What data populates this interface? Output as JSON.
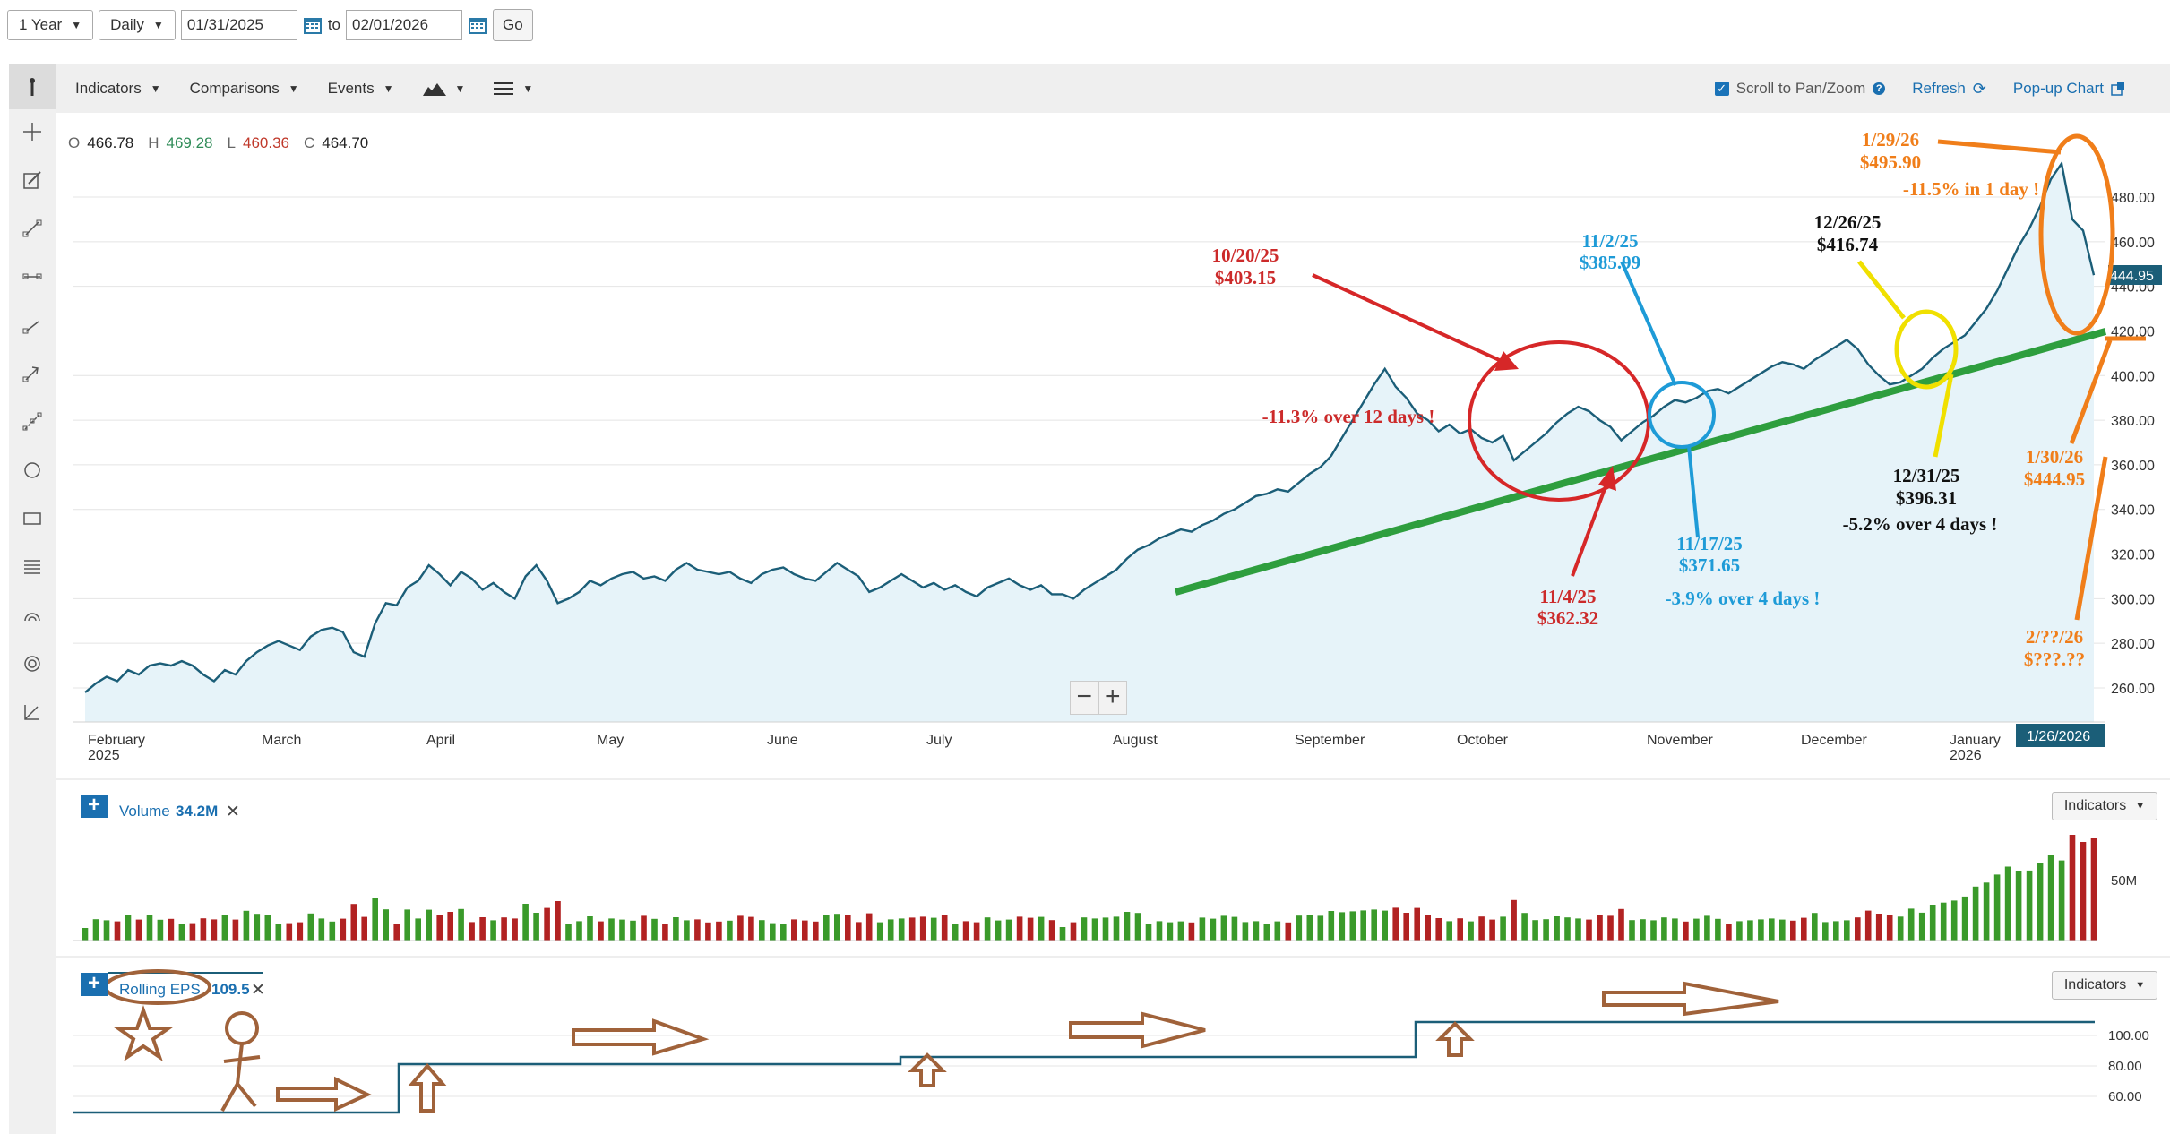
{
  "controls": {
    "range": "1 Year",
    "interval": "Daily",
    "start_date": "01/31/2025",
    "to_label": "to",
    "end_date": "02/01/2026",
    "go": "Go"
  },
  "toolbar": {
    "indicators": "Indicators",
    "comparisons": "Comparisons",
    "events": "Events",
    "scroll_label": "Scroll to Pan/Zoom",
    "refresh": "Refresh",
    "popup": "Pop-up Chart"
  },
  "ohlc": {
    "o_label": "O",
    "o": "466.78",
    "h_label": "H",
    "h": "469.28",
    "l_label": "L",
    "l": "460.36",
    "c_label": "C",
    "c": "464.70"
  },
  "price_axis": {
    "ticks": [
      "260.00",
      "280.00",
      "300.00",
      "320.00",
      "340.00",
      "360.00",
      "380.00",
      "400.00",
      "420.00",
      "440.00",
      "460.00",
      "480.00"
    ],
    "current": "444.95"
  },
  "time_axis": {
    "labels": [
      {
        "t": "February",
        "sub": "2025"
      },
      {
        "t": "March",
        "sub": ""
      },
      {
        "t": "April",
        "sub": ""
      },
      {
        "t": "May",
        "sub": ""
      },
      {
        "t": "June",
        "sub": ""
      },
      {
        "t": "July",
        "sub": ""
      },
      {
        "t": "August",
        "sub": ""
      },
      {
        "t": "September",
        "sub": ""
      },
      {
        "t": "October",
        "sub": ""
      },
      {
        "t": "November",
        "sub": ""
      },
      {
        "t": "December",
        "sub": ""
      },
      {
        "t": "January",
        "sub": "2026"
      }
    ],
    "cursor_date": "1/26/2026"
  },
  "volume": {
    "label": "Volume",
    "value": "34.2M",
    "axis": "50M",
    "indicators": "Indicators"
  },
  "eps": {
    "label": "Rolling EPS",
    "value": "109.5",
    "axis": [
      "100.00",
      "80.00",
      "60.00"
    ],
    "indicators": "Indicators",
    "levels": [
      53,
      83,
      88,
      109.5
    ]
  },
  "annotations": {
    "a1": [
      "10/20/25",
      "$403.15"
    ],
    "a2": "-11.3% over 12 days !",
    "a3": [
      "11/4/25",
      "$362.32"
    ],
    "a4": [
      "11/2/25",
      "$385.99"
    ],
    "a5": [
      "11/17/25",
      "$371.65"
    ],
    "a6": "-3.9% over 4 days !",
    "a7": [
      "12/26/25",
      "$416.74"
    ],
    "a8": [
      "12/31/25",
      "$396.31"
    ],
    "a9": "-5.2% over 4 days !",
    "a10": [
      "1/29/26",
      "$495.90"
    ],
    "a11": "-11.5% in 1 day !",
    "a12": [
      "1/30/26",
      "$444.95"
    ],
    "a13": [
      "2/??/26",
      "$???.??"
    ]
  },
  "colors": {
    "price_line": "#1b5e78",
    "fill": "#e6f3f9",
    "up": "#3a9a2a",
    "down": "#b22222",
    "trend": "#2e9e3e"
  },
  "chart_data": {
    "type": "line",
    "series": [
      {
        "values": [
          258,
          262,
          265,
          263,
          268,
          266,
          270,
          271,
          270,
          272,
          270,
          266,
          263,
          268,
          266,
          272,
          276,
          279,
          281,
          279,
          277,
          283,
          286,
          287,
          285,
          276,
          274,
          289,
          298,
          297,
          305,
          308,
          315,
          311,
          306,
          312,
          309,
          304,
          307,
          303,
          300,
          310,
          315,
          308,
          298,
          300,
          303,
          308,
          306,
          309,
          311,
          312,
          309,
          310,
          308,
          313,
          316,
          313,
          312,
          311,
          312,
          309,
          307,
          311,
          313,
          314,
          311,
          309,
          308,
          312,
          316,
          313,
          310,
          303,
          305,
          308,
          311,
          308,
          305,
          307,
          304,
          306,
          303,
          301,
          305,
          307,
          309,
          306,
          304,
          306,
          302,
          302,
          300,
          304,
          307,
          310,
          313,
          318,
          322,
          324,
          327,
          329,
          331,
          330,
          333,
          335,
          338,
          340,
          343,
          346,
          347,
          349,
          348,
          352,
          356,
          359,
          364,
          372,
          380,
          388,
          396,
          403,
          395,
          390,
          383,
          380,
          375,
          378,
          374,
          376,
          372,
          370,
          373,
          362,
          366,
          370,
          374,
          379,
          383,
          386,
          384,
          380,
          377,
          371,
          375,
          379,
          382,
          386,
          389,
          388,
          390,
          393,
          394,
          392,
          395,
          398,
          401,
          404,
          406,
          405,
          403,
          407,
          410,
          413,
          416,
          412,
          405,
          400,
          396,
          397,
          400,
          403,
          408,
          412,
          415,
          418,
          424,
          430,
          438,
          448,
          458,
          466,
          476,
          488,
          495,
          470,
          465,
          445
        ]
      }
    ],
    "ylim": [
      250,
      500
    ]
  }
}
